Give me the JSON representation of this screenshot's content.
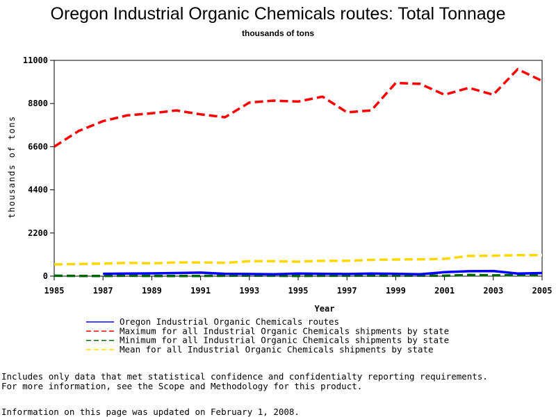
{
  "chart_data": {
    "type": "line",
    "title": "Oregon Industrial Organic Chemicals routes: Total Tonnage",
    "subtitle": "thousands of tons",
    "xlabel": "Year",
    "ylabel": "thousands of tons",
    "xlim": [
      1985,
      2005
    ],
    "ylim": [
      0,
      11000
    ],
    "x_ticks": [
      "1985",
      "1987",
      "1989",
      "1991",
      "1993",
      "1995",
      "1997",
      "1999",
      "2001",
      "2003",
      "2005"
    ],
    "y_ticks": [
      "0",
      "2200",
      "4400",
      "6600",
      "8800",
      "11000"
    ],
    "grid": false,
    "legend_position": "bottom",
    "x": [
      1985,
      1986,
      1987,
      1988,
      1989,
      1990,
      1991,
      1992,
      1993,
      1994,
      1995,
      1996,
      1997,
      1998,
      1999,
      2000,
      2001,
      2002,
      2003,
      2004,
      2005
    ],
    "series": [
      {
        "name": "Oregon Industrial Organic Chemicals routes",
        "color": "#0000ff",
        "style": "solid",
        "values": [
          null,
          null,
          120,
          130,
          140,
          160,
          180,
          120,
          110,
          100,
          130,
          120,
          110,
          130,
          120,
          100,
          200,
          250,
          260,
          130,
          160
        ]
      },
      {
        "name": "Maximum for all Industrial Organic Chemicals shipments by state",
        "color": "#ff0000",
        "style": "dashed",
        "values": [
          6600,
          7400,
          7900,
          8200,
          8300,
          8450,
          8250,
          8100,
          8850,
          8950,
          8900,
          9150,
          8350,
          8450,
          9850,
          9800,
          9250,
          9600,
          9250,
          10550,
          9950
        ]
      },
      {
        "name": "Minimum for all Industrial Organic Chemicals shipments by state",
        "color": "#006400",
        "style": "dashed",
        "values": [
          20,
          10,
          10,
          20,
          10,
          10,
          10,
          20,
          30,
          20,
          10,
          20,
          20,
          30,
          20,
          30,
          20,
          60,
          40,
          50,
          40
        ]
      },
      {
        "name": "Mean for all Industrial Organic Chemicals shipments by state",
        "color": "#ffd700",
        "style": "dashed",
        "values": [
          600,
          620,
          640,
          680,
          650,
          700,
          700,
          680,
          760,
          760,
          740,
          780,
          780,
          830,
          850,
          860,
          880,
          1030,
          1040,
          1070,
          1070
        ]
      }
    ]
  },
  "notes": {
    "line1": "Includes only data that met statistical confidence and confidentialty reporting requirements.",
    "line2": "For more information, see the Scope and Methodology for this product.",
    "updated": "Information on this page was updated on February 1, 2008."
  }
}
